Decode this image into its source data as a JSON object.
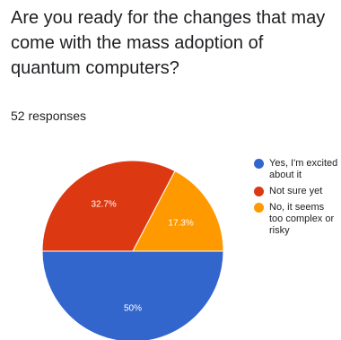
{
  "question": {
    "title": "Are you ready for the changes that may come with the mass adoption of quantum computers?",
    "responses_text": "52 responses"
  },
  "chart_data": {
    "type": "pie",
    "labels": [
      "Yes, I'm excited about it",
      "Not sure yet",
      "No, it seems too complex or risky"
    ],
    "values": [
      50,
      32.7,
      17.3
    ],
    "value_labels": [
      "50%",
      "32.7%",
      "17.3%"
    ],
    "colors": [
      "#3366cc",
      "#dc3912",
      "#ff9900"
    ],
    "legend_position": "right"
  }
}
